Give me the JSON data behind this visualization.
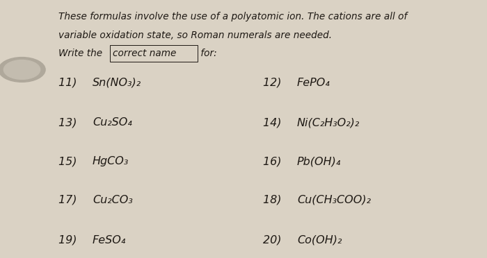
{
  "bg_color": [
    210,
    200,
    185
  ],
  "paper_color": [
    220,
    213,
    198
  ],
  "text_color": [
    30,
    25,
    20
  ],
  "title_lines": [
    "These formulas involve the use of a polyatomic ion. The cations are all of",
    "variable oxidation state, so Roman numerals are needed.",
    "Write the correct name for:"
  ],
  "underline_word": "correct name",
  "items": [
    {
      "num": "11) ",
      "formula": "Sn(NO₃)₂",
      "col": 0,
      "row": 0
    },
    {
      "num": "12) ",
      "formula": "FePO₄",
      "col": 1,
      "row": 0
    },
    {
      "num": "13) ",
      "formula": "Cu₂SO₄",
      "col": 0,
      "row": 1
    },
    {
      "num": "14) ",
      "formula": "Ni(C₂H₃O₂)₂",
      "col": 1,
      "row": 1
    },
    {
      "num": "15) ",
      "formula": "HgCO₃",
      "col": 0,
      "row": 2
    },
    {
      "num": "16) ",
      "formula": "Pb(OH)₄",
      "col": 1,
      "row": 2
    },
    {
      "num": "17) ",
      "formula": "Cu₂CO₃",
      "col": 0,
      "row": 3
    },
    {
      "num": "18) ",
      "formula": "Cu(CH₃COO)₂",
      "col": 1,
      "row": 3
    },
    {
      "num": "19) ",
      "formula": "FeSO₄",
      "col": 0,
      "row": 4
    },
    {
      "num": "20) ",
      "formula": "Co(OH)₂",
      "col": 1,
      "row": 4
    }
  ],
  "figsize": [
    7.0,
    3.72
  ],
  "dpi": 100
}
